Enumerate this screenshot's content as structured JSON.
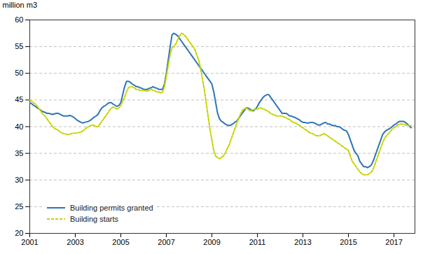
{
  "chart_data": {
    "type": "line",
    "y_label": "million m3",
    "xlim": [
      2001.0,
      2017.92
    ],
    "xticks": [
      2001,
      2003,
      2005,
      2007,
      2009,
      2011,
      2013,
      2015,
      2017
    ],
    "ylim": [
      20,
      60
    ],
    "yticks": [
      20,
      25,
      30,
      35,
      40,
      45,
      50,
      55,
      60
    ],
    "grid": true,
    "legend": "lower left",
    "x": [
      2001.0,
      2001.083,
      2001.167,
      2001.25,
      2001.333,
      2001.417,
      2001.5,
      2001.583,
      2001.667,
      2001.75,
      2001.833,
      2001.917,
      2002.0,
      2002.083,
      2002.167,
      2002.25,
      2002.333,
      2002.417,
      2002.5,
      2002.583,
      2002.667,
      2002.75,
      2002.833,
      2002.917,
      2003.0,
      2003.083,
      2003.167,
      2003.25,
      2003.333,
      2003.417,
      2003.5,
      2003.583,
      2003.667,
      2003.75,
      2003.833,
      2003.917,
      2004.0,
      2004.083,
      2004.167,
      2004.25,
      2004.333,
      2004.417,
      2004.5,
      2004.583,
      2004.667,
      2004.75,
      2004.833,
      2004.917,
      2005.0,
      2005.083,
      2005.167,
      2005.25,
      2005.333,
      2005.417,
      2005.5,
      2005.583,
      2005.667,
      2005.75,
      2005.833,
      2005.917,
      2006.0,
      2006.083,
      2006.167,
      2006.25,
      2006.333,
      2006.417,
      2006.5,
      2006.583,
      2006.667,
      2006.75,
      2006.833,
      2006.917,
      2007.0,
      2007.083,
      2007.167,
      2007.25,
      2007.333,
      2007.417,
      2007.5,
      2007.583,
      2007.667,
      2007.75,
      2007.833,
      2007.917,
      2008.0,
      2008.083,
      2008.167,
      2008.25,
      2008.333,
      2008.417,
      2008.5,
      2008.583,
      2008.667,
      2008.75,
      2008.833,
      2008.917,
      2009.0,
      2009.083,
      2009.167,
      2009.25,
      2009.333,
      2009.417,
      2009.5,
      2009.583,
      2009.667,
      2009.75,
      2009.833,
      2009.917,
      2010.0,
      2010.083,
      2010.167,
      2010.25,
      2010.333,
      2010.417,
      2010.5,
      2010.583,
      2010.667,
      2010.75,
      2010.833,
      2010.917,
      2011.0,
      2011.083,
      2011.167,
      2011.25,
      2011.333,
      2011.417,
      2011.5,
      2011.583,
      2011.667,
      2011.75,
      2011.833,
      2011.917,
      2012.0,
      2012.083,
      2012.167,
      2012.25,
      2012.333,
      2012.417,
      2012.5,
      2012.583,
      2012.667,
      2012.75,
      2012.833,
      2012.917,
      2013.0,
      2013.083,
      2013.167,
      2013.25,
      2013.333,
      2013.417,
      2013.5,
      2013.583,
      2013.667,
      2013.75,
      2013.833,
      2013.917,
      2014.0,
      2014.083,
      2014.167,
      2014.25,
      2014.333,
      2014.417,
      2014.5,
      2014.583,
      2014.667,
      2014.75,
      2014.833,
      2014.917,
      2015.0,
      2015.083,
      2015.167,
      2015.25,
      2015.333,
      2015.417,
      2015.5,
      2015.583,
      2015.667,
      2015.75,
      2015.833,
      2015.917,
      2016.0,
      2016.083,
      2016.167,
      2016.25,
      2016.333,
      2016.417,
      2016.5,
      2016.583,
      2016.667,
      2016.75,
      2016.833,
      2016.917,
      2017.0,
      2017.083,
      2017.167,
      2017.25,
      2017.333,
      2017.417,
      2017.5,
      2017.583,
      2017.667,
      2017.75
    ],
    "series": [
      {
        "name": "Building permits granted",
        "color": "#2E75B6",
        "line_style": "solid",
        "values": [
          44.5,
          44.3,
          44.0,
          43.8,
          43.5,
          43.3,
          43.0,
          42.8,
          42.7,
          42.5,
          42.5,
          42.4,
          42.3,
          42.4,
          42.5,
          42.5,
          42.3,
          42.1,
          42.0,
          42.0,
          42.0,
          42.1,
          42.0,
          41.8,
          41.5,
          41.2,
          41.0,
          40.8,
          40.7,
          40.8,
          40.9,
          41.0,
          41.2,
          41.5,
          41.8,
          42.0,
          42.3,
          43.0,
          43.5,
          43.8,
          44.0,
          44.3,
          44.5,
          44.5,
          44.2,
          44.0,
          43.8,
          44.0,
          44.5,
          46.0,
          47.5,
          48.5,
          48.5,
          48.3,
          48.0,
          47.8,
          47.5,
          47.5,
          47.3,
          47.2,
          47.0,
          47.0,
          47.0,
          47.2,
          47.3,
          47.5,
          47.3,
          47.2,
          47.0,
          47.0,
          47.0,
          48.0,
          50.0,
          52.5,
          55.0,
          57.2,
          57.5,
          57.3,
          57.0,
          56.5,
          56.0,
          55.5,
          55.0,
          54.5,
          54.0,
          53.5,
          53.0,
          52.5,
          52.0,
          51.5,
          51.0,
          50.5,
          50.0,
          49.5,
          49.0,
          48.5,
          48.0,
          46.5,
          44.5,
          42.5,
          41.5,
          41.0,
          40.8,
          40.5,
          40.3,
          40.2,
          40.3,
          40.5,
          40.8,
          41.0,
          41.5,
          42.0,
          42.5,
          43.0,
          43.5,
          43.5,
          43.3,
          43.0,
          43.0,
          43.3,
          43.8,
          44.5,
          45.0,
          45.5,
          45.8,
          46.0,
          46.0,
          45.5,
          45.0,
          44.5,
          44.0,
          43.5,
          43.0,
          42.5,
          42.5,
          42.5,
          42.3,
          42.0,
          42.0,
          41.8,
          41.7,
          41.5,
          41.3,
          41.0,
          40.8,
          40.8,
          40.7,
          40.7,
          40.8,
          40.8,
          40.7,
          40.5,
          40.3,
          40.3,
          40.5,
          40.7,
          40.8,
          40.5,
          40.5,
          40.3,
          40.2,
          40.2,
          40.0,
          40.0,
          39.8,
          39.5,
          39.3,
          39.2,
          38.5,
          37.5,
          36.5,
          35.5,
          35.0,
          34.5,
          33.5,
          33.0,
          32.5,
          32.5,
          32.3,
          32.5,
          32.8,
          33.5,
          34.5,
          35.5,
          36.5,
          37.5,
          38.5,
          39.0,
          39.3,
          39.5,
          39.7,
          40.0,
          40.3,
          40.5,
          40.8,
          41.0,
          41.0,
          41.0,
          40.8,
          40.5,
          40.2,
          39.8
        ]
      },
      {
        "name": "Building starts",
        "color": "#C5D500",
        "line_style": "dotted",
        "values": [
          45.0,
          44.8,
          44.5,
          44.2,
          43.8,
          43.3,
          42.8,
          42.3,
          42.0,
          41.5,
          41.0,
          40.5,
          40.0,
          39.7,
          39.5,
          39.3,
          39.0,
          38.8,
          38.7,
          38.6,
          38.5,
          38.6,
          38.7,
          38.8,
          38.8,
          38.8,
          38.9,
          39.0,
          39.2,
          39.5,
          39.8,
          40.0,
          40.2,
          40.3,
          40.2,
          40.0,
          40.0,
          40.5,
          41.0,
          41.5,
          42.0,
          42.5,
          43.0,
          43.5,
          43.7,
          43.5,
          43.3,
          43.5,
          44.0,
          44.8,
          45.5,
          46.5,
          47.3,
          47.5,
          47.5,
          47.3,
          47.0,
          47.0,
          46.8,
          46.8,
          46.8,
          46.7,
          46.7,
          46.8,
          47.0,
          46.8,
          46.7,
          46.5,
          46.5,
          46.3,
          46.5,
          47.5,
          49.5,
          51.5,
          53.5,
          54.8,
          55.0,
          55.5,
          56.3,
          57.0,
          57.5,
          57.3,
          57.0,
          56.5,
          56.0,
          55.5,
          55.0,
          54.5,
          53.5,
          52.5,
          51.0,
          49.0,
          47.0,
          44.5,
          42.0,
          39.5,
          37.5,
          35.5,
          34.5,
          34.2,
          34.0,
          34.2,
          34.5,
          35.0,
          35.8,
          36.5,
          37.5,
          38.5,
          39.5,
          40.5,
          41.5,
          42.3,
          43.0,
          43.3,
          43.5,
          43.3,
          43.0,
          43.0,
          43.2,
          43.3,
          43.3,
          43.5,
          43.5,
          43.3,
          43.2,
          43.0,
          42.8,
          42.5,
          42.3,
          42.2,
          42.0,
          42.0,
          42.0,
          42.0,
          41.8,
          41.7,
          41.5,
          41.3,
          41.0,
          40.8,
          40.7,
          40.5,
          40.3,
          40.0,
          39.8,
          39.5,
          39.3,
          39.0,
          38.8,
          38.7,
          38.5,
          38.3,
          38.3,
          38.3,
          38.5,
          38.7,
          38.5,
          38.3,
          38.0,
          37.8,
          37.5,
          37.3,
          37.0,
          36.8,
          36.5,
          36.3,
          36.0,
          35.8,
          35.5,
          34.5,
          33.5,
          33.0,
          32.5,
          32.0,
          31.5,
          31.2,
          31.0,
          31.0,
          31.0,
          31.2,
          31.5,
          32.0,
          33.0,
          34.0,
          35.0,
          36.0,
          37.0,
          37.8,
          38.3,
          38.7,
          39.0,
          39.5,
          39.8,
          40.0,
          40.3,
          40.5,
          40.5,
          40.5,
          40.3,
          40.3,
          40.2,
          40.2
        ]
      }
    ]
  }
}
